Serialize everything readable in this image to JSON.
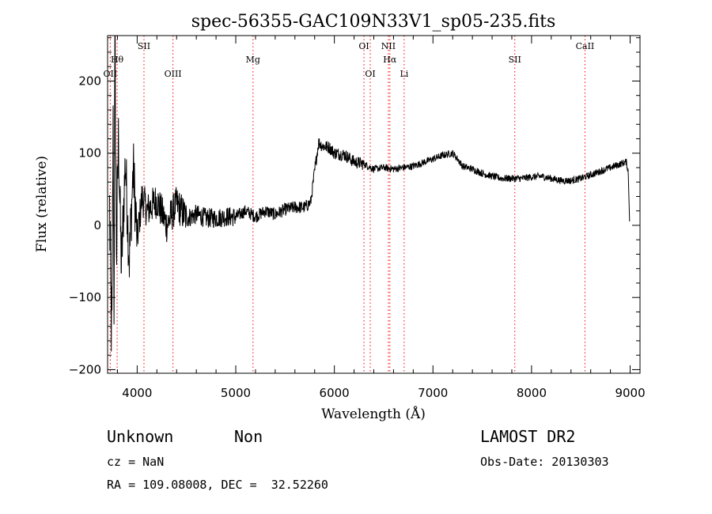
{
  "chart_data": {
    "type": "line",
    "title": "spec-56355-GAC109N33V1_sp05-235.fits",
    "xlabel": "Wavelength (Å)",
    "ylabel": "Flux (relative)",
    "xlim": [
      3700,
      9100
    ],
    "ylim": [
      -205,
      263
    ],
    "xticks": [
      4000,
      5000,
      6000,
      7000,
      8000,
      9000
    ],
    "yticks": [
      -200,
      -100,
      0,
      100,
      200
    ],
    "line_color": "#000000",
    "marker_color": "#ff0000",
    "grid": false,
    "legend": "none",
    "spectrum_anchors": [
      [
        3720,
        20
      ],
      [
        3735,
        -120
      ],
      [
        3745,
        -150
      ],
      [
        3755,
        150
      ],
      [
        3765,
        -100
      ],
      [
        3775,
        255
      ],
      [
        3790,
        -40
      ],
      [
        3810,
        120
      ],
      [
        3840,
        -60
      ],
      [
        3880,
        90
      ],
      [
        3920,
        -50
      ],
      [
        3960,
        80
      ],
      [
        4000,
        -20
      ],
      [
        4050,
        40
      ],
      [
        4100,
        20
      ],
      [
        4200,
        35
      ],
      [
        4300,
        0
      ],
      [
        4400,
        30
      ],
      [
        4500,
        10
      ],
      [
        4600,
        15
      ],
      [
        4700,
        10
      ],
      [
        4800,
        10
      ],
      [
        4900,
        12
      ],
      [
        5000,
        12
      ],
      [
        5100,
        20
      ],
      [
        5200,
        12
      ],
      [
        5300,
        20
      ],
      [
        5400,
        15
      ],
      [
        5500,
        22
      ],
      [
        5600,
        25
      ],
      [
        5700,
        25
      ],
      [
        5760,
        32
      ],
      [
        5800,
        75
      ],
      [
        5840,
        115
      ],
      [
        5880,
        110
      ],
      [
        5950,
        108
      ],
      [
        6000,
        100
      ],
      [
        6100,
        98
      ],
      [
        6200,
        88
      ],
      [
        6300,
        85
      ],
      [
        6400,
        78
      ],
      [
        6500,
        80
      ],
      [
        6600,
        78
      ],
      [
        6700,
        80
      ],
      [
        6800,
        82
      ],
      [
        6900,
        87
      ],
      [
        7000,
        92
      ],
      [
        7100,
        97
      ],
      [
        7200,
        100
      ],
      [
        7250,
        92
      ],
      [
        7300,
        82
      ],
      [
        7400,
        78
      ],
      [
        7500,
        72
      ],
      [
        7600,
        68
      ],
      [
        7700,
        65
      ],
      [
        7800,
        65
      ],
      [
        7900,
        65
      ],
      [
        8000,
        67
      ],
      [
        8100,
        68
      ],
      [
        8200,
        65
      ],
      [
        8300,
        62
      ],
      [
        8400,
        62
      ],
      [
        8500,
        65
      ],
      [
        8600,
        70
      ],
      [
        8700,
        75
      ],
      [
        8800,
        80
      ],
      [
        8900,
        85
      ],
      [
        8960,
        88
      ],
      [
        8980,
        75
      ],
      [
        8995,
        5
      ]
    ],
    "spectral_lines": [
      {
        "label": "Hθ",
        "x": 3797,
        "row": 2
      },
      {
        "label": "OII",
        "x": 3727,
        "row": 3
      },
      {
        "label": "SII",
        "x": 4069,
        "row": 1
      },
      {
        "label": "OIII",
        "x": 4363,
        "row": 3
      },
      {
        "label": "Mg",
        "x": 5175,
        "row": 2
      },
      {
        "label": "OI",
        "x": 6300,
        "row": 1
      },
      {
        "label": "OI",
        "x": 6364,
        "row": 3
      },
      {
        "label": "NII",
        "x": 6548,
        "row": 1
      },
      {
        "label": "Hα",
        "x": 6563,
        "row": 2
      },
      {
        "label": "Li",
        "x": 6708,
        "row": 3
      },
      {
        "label": "SII",
        "x": 7830,
        "row": 2
      },
      {
        "label": "CaII",
        "x": 8542,
        "row": 1
      }
    ]
  },
  "info": {
    "object_type": "Unknown",
    "subclass": "Non",
    "redshift": "cz = NaN",
    "coords": "RA = 109.08008, DEC =  32.52260",
    "survey": "LAMOST DR2",
    "obs_date": "Obs-Date: 20130303"
  }
}
